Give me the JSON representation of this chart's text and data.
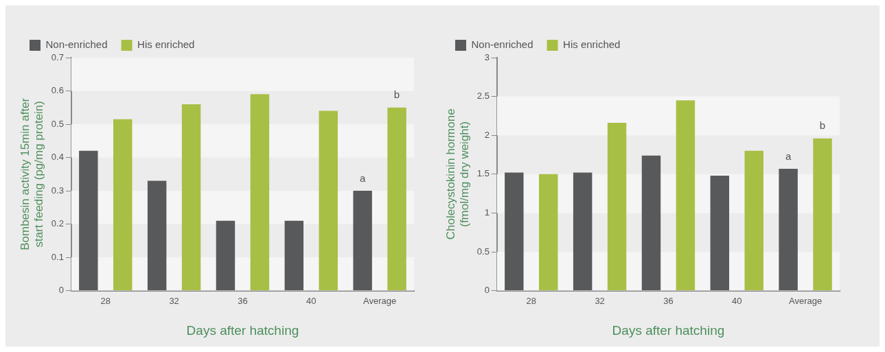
{
  "chart_data": [
    {
      "type": "bar",
      "xlabel": "Days after hatching",
      "ylabel": "Bombesin activity 15min after start feeding (pg/mg protein)",
      "categories": [
        "28",
        "32",
        "36",
        "40",
        "Average"
      ],
      "series": [
        {
          "name": "Non-enriched",
          "color": "#58595b",
          "values": [
            0.42,
            0.33,
            0.21,
            0.21,
            0.3
          ]
        },
        {
          "name": "His enriched",
          "color": "#a8bf45",
          "values": [
            0.515,
            0.56,
            0.59,
            0.54,
            0.55
          ]
        }
      ],
      "ylim": [
        0,
        0.7
      ],
      "yticks": [
        0,
        0.1,
        0.2,
        0.3,
        0.4,
        0.5,
        0.6,
        0.7
      ],
      "legend": "top",
      "annotations": [
        "a",
        "b"
      ]
    },
    {
      "type": "bar",
      "xlabel": "Days after hatching",
      "ylabel": "Cholecystokinin hormone (fmol/mg dry weight)",
      "categories": [
        "28",
        "32",
        "36",
        "40",
        "Average"
      ],
      "series": [
        {
          "name": "Non-enriched",
          "color": "#58595b",
          "values": [
            1.52,
            1.52,
            1.74,
            1.48,
            1.57
          ]
        },
        {
          "name": "His enriched",
          "color": "#a8bf45",
          "values": [
            1.5,
            2.16,
            2.45,
            1.8,
            1.96
          ]
        }
      ],
      "ylim": [
        0,
        3
      ],
      "yticks": [
        0,
        0.5,
        1,
        1.5,
        2,
        2.5,
        3
      ],
      "legend": "top",
      "annotations": [
        "a",
        "b"
      ]
    }
  ]
}
